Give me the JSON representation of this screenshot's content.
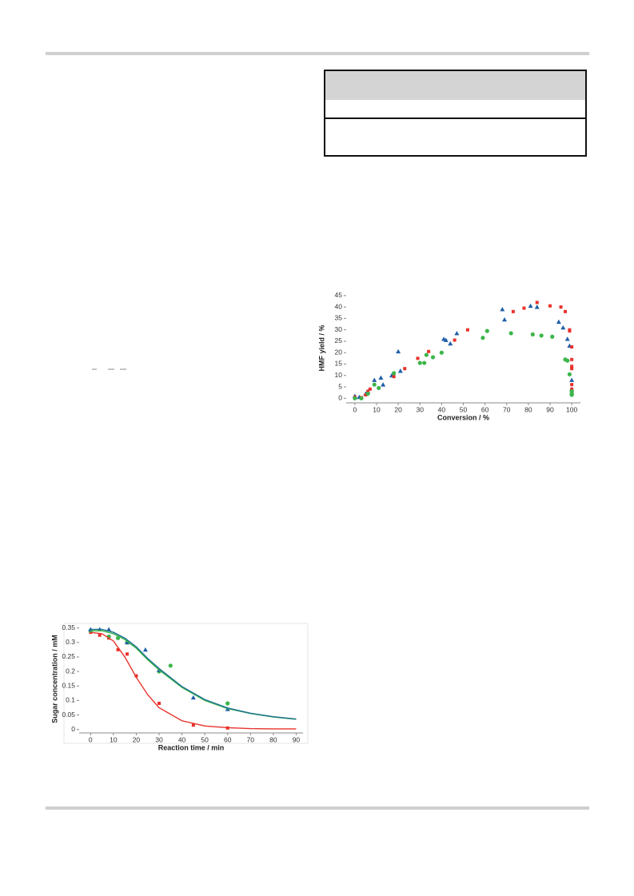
{
  "chart_data": [
    {
      "type": "scatter",
      "xlabel": "Reaction time / min",
      "ylabel": "Sugar concentration / mM",
      "xlim": [
        -5,
        93
      ],
      "ylim": [
        -0.012,
        0.36
      ],
      "xticks": [
        0,
        10,
        20,
        30,
        40,
        50,
        60,
        70,
        80,
        90
      ],
      "yticks": [
        0,
        0.05,
        0.1,
        0.15,
        0.2,
        0.25,
        0.3,
        0.35
      ],
      "grid": false,
      "series": [
        {
          "color": "#e8322c",
          "marker": "square",
          "x": [
            0,
            4,
            8,
            12,
            16,
            20,
            30,
            45,
            60
          ],
          "values": [
            0.335,
            0.325,
            0.315,
            0.275,
            0.26,
            0.185,
            0.09,
            0.015,
            0.005
          ]
        },
        {
          "color": "#3cb54a",
          "marker": "circle",
          "x": [
            0,
            8,
            12,
            16,
            30,
            35,
            60
          ],
          "values": [
            0.34,
            0.32,
            0.315,
            0.3,
            0.2,
            0.22,
            0.09
          ]
        },
        {
          "color": "#1f5fa8",
          "marker": "triangle",
          "x": [
            0,
            4,
            8,
            16,
            24,
            30,
            45,
            60
          ],
          "values": [
            0.345,
            0.345,
            0.345,
            0.3,
            0.275,
            0.205,
            0.11,
            0.07
          ]
        },
        {
          "color": "#e8322c",
          "marker": "line",
          "x": [
            0,
            5,
            10,
            15,
            20,
            25,
            30,
            40,
            50,
            60,
            70,
            80,
            90
          ],
          "values": [
            0.335,
            0.33,
            0.305,
            0.25,
            0.18,
            0.12,
            0.075,
            0.03,
            0.012,
            0.006,
            0.003,
            0.002,
            0.002
          ]
        },
        {
          "color": "#3cb54a",
          "marker": "line",
          "x": [
            0,
            5,
            10,
            15,
            20,
            25,
            30,
            40,
            50,
            60,
            70,
            80,
            90
          ],
          "values": [
            0.34,
            0.34,
            0.33,
            0.31,
            0.28,
            0.24,
            0.205,
            0.145,
            0.1,
            0.072,
            0.055,
            0.043,
            0.035
          ]
        },
        {
          "color": "#1a6f8f",
          "marker": "line",
          "x": [
            0,
            5,
            10,
            15,
            20,
            25,
            30,
            40,
            50,
            60,
            70,
            80,
            90
          ],
          "values": [
            0.345,
            0.345,
            0.335,
            0.315,
            0.285,
            0.245,
            0.21,
            0.148,
            0.103,
            0.074,
            0.056,
            0.044,
            0.036
          ]
        }
      ]
    },
    {
      "type": "scatter",
      "xlabel": "Conversion / %",
      "ylabel": "HMF yield / %",
      "xlim": [
        -4,
        104
      ],
      "ylim": [
        -2,
        46
      ],
      "xticks": [
        0,
        10,
        20,
        30,
        40,
        50,
        60,
        70,
        80,
        90,
        100
      ],
      "yticks": [
        0,
        5,
        10,
        15,
        20,
        25,
        30,
        35,
        40,
        45
      ],
      "grid": false,
      "series": [
        {
          "color": "#1f5fa8",
          "marker": "triangle",
          "x": [
            0,
            2,
            5,
            6,
            9,
            12,
            13,
            17,
            20,
            21,
            41,
            42,
            44,
            47,
            68,
            69,
            81,
            84,
            94,
            96,
            98,
            99,
            100,
            100,
            100
          ],
          "values": [
            1,
            0.5,
            2,
            3,
            8,
            9,
            6,
            10,
            20.5,
            12,
            26,
            25.5,
            24,
            28.5,
            39,
            34.5,
            40.5,
            40,
            33.5,
            31,
            26,
            23,
            8,
            4,
            2.5
          ]
        },
        {
          "color": "#e8322c",
          "marker": "square",
          "x": [
            0,
            3,
            5,
            6,
            7,
            18,
            23,
            29,
            34,
            46,
            52,
            73,
            78,
            84,
            90,
            95,
            97,
            99,
            99,
            100,
            100,
            100,
            100,
            100,
            100
          ],
          "values": [
            0.5,
            0.3,
            1.5,
            3,
            4,
            9.5,
            13,
            17.5,
            20.5,
            25.5,
            30,
            38,
            39.5,
            42,
            40.5,
            40,
            38,
            29.5,
            30,
            22.5,
            17,
            14,
            13,
            6,
            4
          ]
        },
        {
          "color": "#3cb54a",
          "marker": "circle",
          "x": [
            0,
            3,
            6,
            9,
            11,
            18,
            30,
            32,
            33,
            36,
            40,
            59,
            61,
            72,
            82,
            86,
            91,
            97,
            98,
            99,
            100,
            100,
            100
          ],
          "values": [
            0,
            0,
            2,
            6,
            4.5,
            11,
            15.5,
            15.5,
            19,
            18,
            20,
            26.5,
            29.5,
            28.5,
            28,
            27.5,
            27,
            17,
            16.5,
            10.5,
            3,
            2,
            1.5
          ]
        }
      ]
    }
  ]
}
